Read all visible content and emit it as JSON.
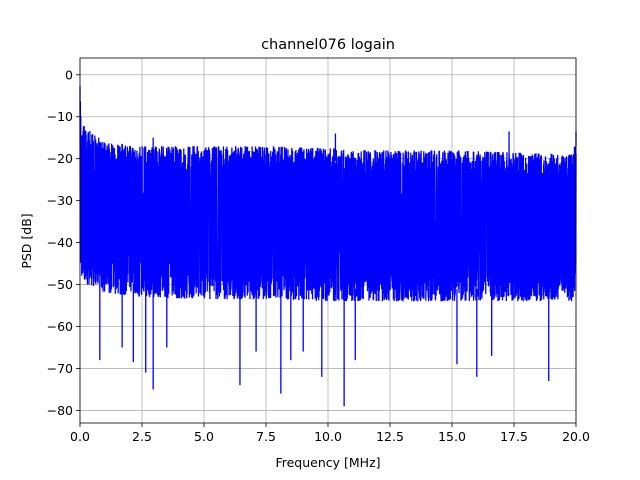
{
  "chart_data": {
    "type": "line",
    "title": "channel076 logain",
    "xlabel": "Frequency [MHz]",
    "ylabel": "PSD [dB]",
    "xlim": [
      0,
      20
    ],
    "ylim": [
      -83,
      4
    ],
    "xticks": [
      0,
      2.5,
      5,
      7.5,
      10,
      12.5,
      15,
      17.5,
      20
    ],
    "xtick_labels": [
      "0.0",
      "2.5",
      "5.0",
      "7.5",
      "10.0",
      "12.5",
      "15.0",
      "17.5",
      "20.0"
    ],
    "yticks": [
      0,
      -10,
      -20,
      -30,
      -40,
      -50,
      -60,
      -70,
      -80
    ],
    "ytick_labels": [
      "0",
      "−10",
      "−20",
      "−30",
      "−40",
      "−50",
      "−60",
      "−70",
      "−80"
    ],
    "grid": true,
    "legend": "none",
    "series": [
      {
        "color": "#0000ff",
        "envelope": {
          "x": [
            0.0,
            0.05,
            0.3,
            1.0,
            2.5,
            5.0,
            7.5,
            10.0,
            12.5,
            15.0,
            17.5,
            19.9,
            20.0
          ],
          "upper": [
            0.0,
            -11,
            -13,
            -16,
            -17,
            -17,
            -17,
            -17.5,
            -18,
            -18,
            -18.5,
            -19,
            -14
          ],
          "lower": [
            -43,
            -48,
            -50,
            -52,
            -53,
            -53.5,
            -53.5,
            -54,
            -54,
            -54,
            -54,
            -54,
            -50
          ]
        },
        "peaks": [
          {
            "x": 2.95,
            "y": -15
          },
          {
            "x": 10.3,
            "y": -14
          },
          {
            "x": 17.3,
            "y": -13.5
          },
          {
            "x": 20.0,
            "y": -13.5
          }
        ],
        "dips": [
          {
            "x": 0.8,
            "y": -68
          },
          {
            "x": 1.7,
            "y": -65
          },
          {
            "x": 2.15,
            "y": -68.5
          },
          {
            "x": 2.65,
            "y": -71
          },
          {
            "x": 2.95,
            "y": -75
          },
          {
            "x": 3.5,
            "y": -65
          },
          {
            "x": 6.45,
            "y": -74
          },
          {
            "x": 7.1,
            "y": -66
          },
          {
            "x": 8.1,
            "y": -76
          },
          {
            "x": 8.5,
            "y": -68
          },
          {
            "x": 9.0,
            "y": -66
          },
          {
            "x": 9.75,
            "y": -72
          },
          {
            "x": 10.65,
            "y": -79
          },
          {
            "x": 11.1,
            "y": -68
          },
          {
            "x": 15.2,
            "y": -69
          },
          {
            "x": 16.0,
            "y": -72
          },
          {
            "x": 16.6,
            "y": -67
          },
          {
            "x": 18.9,
            "y": -73
          }
        ]
      }
    ]
  }
}
